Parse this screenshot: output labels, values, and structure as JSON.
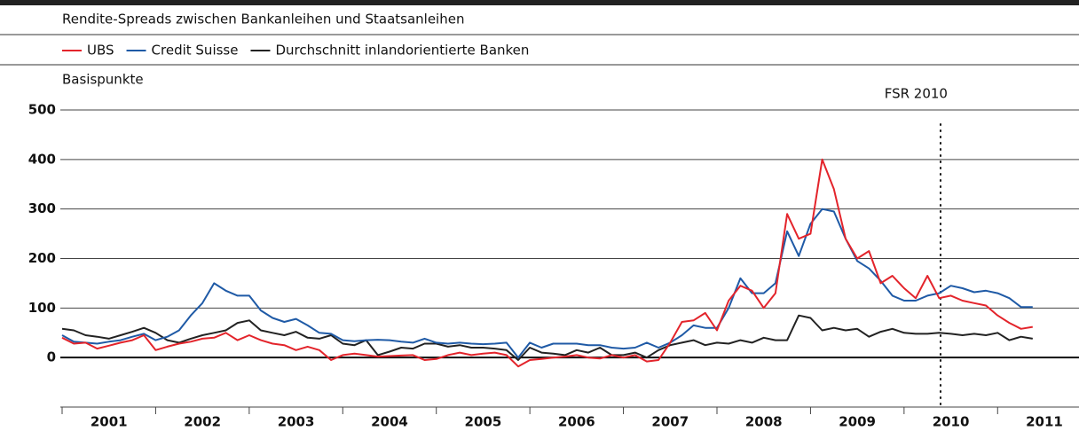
{
  "chart_data": {
    "type": "line",
    "subtitle": "Rendite-Spreads zwischen Bankanleihen und Staatsanleihen",
    "ylabel": "Basispunkte",
    "x": [
      2001,
      2001.125,
      2001.25,
      2001.375,
      2001.5,
      2001.625,
      2001.75,
      2001.875,
      2002,
      2002.125,
      2002.25,
      2002.375,
      2002.5,
      2002.625,
      2002.75,
      2002.875,
      2003,
      2003.125,
      2003.25,
      2003.375,
      2003.5,
      2003.625,
      2003.75,
      2003.875,
      2004,
      2004.125,
      2004.25,
      2004.375,
      2004.5,
      2004.625,
      2004.75,
      2004.875,
      2005,
      2005.125,
      2005.25,
      2005.375,
      2005.5,
      2005.625,
      2005.75,
      2005.875,
      2006,
      2006.125,
      2006.25,
      2006.375,
      2006.5,
      2006.625,
      2006.75,
      2006.875,
      2007,
      2007.125,
      2007.25,
      2007.375,
      2007.5,
      2007.625,
      2007.75,
      2007.875,
      2008,
      2008.125,
      2008.25,
      2008.375,
      2008.5,
      2008.625,
      2008.75,
      2008.875,
      2009,
      2009.125,
      2009.25,
      2009.375,
      2009.5,
      2009.625,
      2009.75,
      2009.875,
      2010,
      2010.125,
      2010.25,
      2010.375,
      2010.5,
      2010.625,
      2010.75,
      2010.875,
      2011,
      2011.125,
      2011.25,
      2011.375
    ],
    "series": [
      {
        "name": "UBS",
        "color": "#e3242b",
        "values": [
          40,
          28,
          30,
          18,
          24,
          30,
          35,
          45,
          15,
          22,
          28,
          32,
          38,
          40,
          50,
          35,
          45,
          35,
          28,
          25,
          15,
          22,
          15,
          -5,
          5,
          8,
          5,
          2,
          3,
          4,
          5,
          -5,
          -3,
          5,
          10,
          5,
          8,
          10,
          5,
          -18,
          -5,
          -3,
          0,
          2,
          5,
          0,
          -2,
          5,
          0,
          5,
          -8,
          -5,
          30,
          72,
          75,
          90,
          55,
          115,
          145,
          135,
          100,
          130,
          290,
          240,
          250,
          400,
          340,
          240,
          200,
          215,
          150,
          165,
          140,
          120,
          165,
          120,
          125,
          115,
          110,
          105,
          85,
          70,
          58,
          62
        ]
      },
      {
        "name": "Credit Suisse",
        "color": "#1f5aa6",
        "values": [
          45,
          32,
          30,
          28,
          32,
          35,
          42,
          48,
          35,
          42,
          55,
          85,
          110,
          150,
          135,
          125,
          125,
          95,
          80,
          72,
          78,
          65,
          50,
          48,
          35,
          33,
          35,
          36,
          35,
          32,
          30,
          38,
          30,
          28,
          30,
          28,
          27,
          28,
          30,
          0,
          30,
          20,
          28,
          28,
          28,
          25,
          25,
          20,
          18,
          20,
          30,
          20,
          30,
          45,
          65,
          60,
          60,
          100,
          160,
          130,
          130,
          150,
          255,
          205,
          270,
          300,
          295,
          240,
          195,
          180,
          155,
          125,
          115,
          115,
          125,
          130,
          145,
          140,
          132,
          135,
          130,
          120,
          102,
          102
        ]
      },
      {
        "name": "Durchschnitt inlandorientierte Banken",
        "color": "#222222",
        "values": [
          58,
          55,
          45,
          42,
          38,
          45,
          52,
          60,
          50,
          35,
          30,
          38,
          45,
          50,
          55,
          70,
          75,
          55,
          50,
          45,
          52,
          40,
          38,
          45,
          28,
          25,
          35,
          5,
          12,
          20,
          18,
          28,
          28,
          22,
          25,
          20,
          20,
          18,
          15,
          -5,
          20,
          10,
          8,
          5,
          15,
          10,
          20,
          5,
          5,
          10,
          0,
          15,
          25,
          30,
          35,
          25,
          30,
          28,
          35,
          30,
          40,
          35,
          35,
          85,
          80,
          55,
          60,
          55,
          58,
          42,
          52,
          58,
          50,
          48,
          48,
          50,
          48,
          45,
          48,
          45,
          50,
          35,
          42,
          38
        ]
      }
    ],
    "xlim": [
      2001,
      2011.87
    ],
    "xticks": [
      {
        "value": 2001.5,
        "label": "2001"
      },
      {
        "value": 2002.5,
        "label": "2002"
      },
      {
        "value": 2003.5,
        "label": "2003"
      },
      {
        "value": 2004.5,
        "label": "2004"
      },
      {
        "value": 2005.5,
        "label": "2005"
      },
      {
        "value": 2006.5,
        "label": "2006"
      },
      {
        "value": 2007.5,
        "label": "2007"
      },
      {
        "value": 2008.5,
        "label": "2008"
      },
      {
        "value": 2009.5,
        "label": "2009"
      },
      {
        "value": 2010.5,
        "label": "2010"
      },
      {
        "value": 2011.5,
        "label": "2011"
      }
    ],
    "xtick_marks": [
      2001,
      2002,
      2003,
      2004,
      2005,
      2006,
      2007,
      2008,
      2009,
      2010,
      2011
    ],
    "ylim": [
      -100,
      500
    ],
    "yticks": [
      0,
      100,
      200,
      300,
      400,
      500
    ],
    "grid": true,
    "annotations": [
      {
        "label": "FSR 2010",
        "x": 2010.39
      }
    ]
  }
}
